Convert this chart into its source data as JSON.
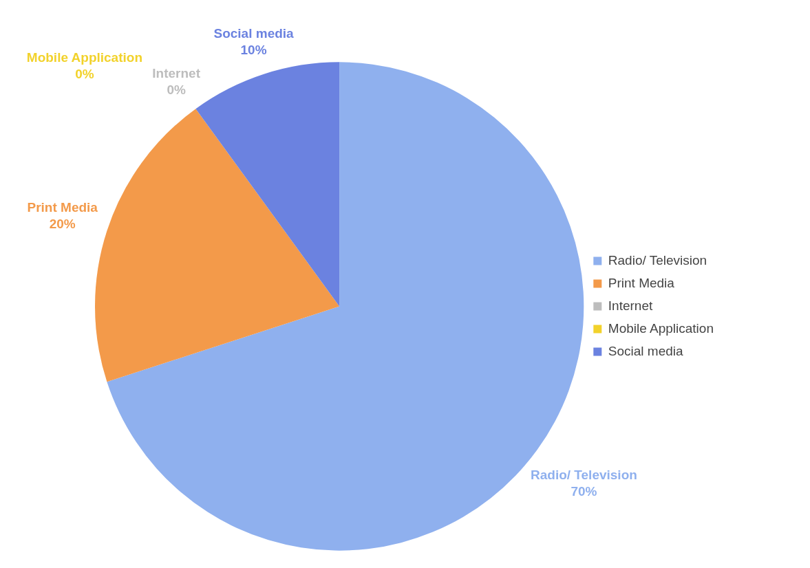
{
  "chart_data": {
    "type": "pie",
    "categories": [
      "Radio/ Television",
      "Print Media",
      "Internet",
      "Mobile Application",
      "Social media"
    ],
    "values": [
      70,
      20,
      0,
      0,
      10
    ],
    "value_labels": [
      "70%",
      "20%",
      "0%",
      "0%",
      "10%"
    ],
    "colors": [
      "#8fb0ee",
      "#f39a4a",
      "#bdbdbd",
      "#f2d22b",
      "#6b82e0"
    ],
    "legend": "right"
  }
}
